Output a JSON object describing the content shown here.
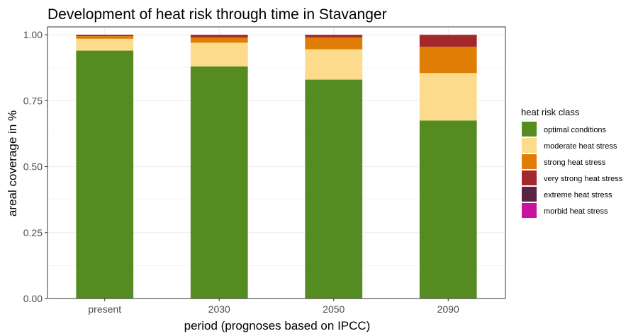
{
  "chart_data": {
    "type": "bar",
    "stacked": true,
    "title": "Development of heat risk through time in Stavanger",
    "xlabel": "period (prognoses based on IPCC)",
    "ylabel": "areal coverage in %",
    "categories": [
      "present",
      "2030",
      "2050",
      "2090"
    ],
    "ylim": [
      0,
      1.03
    ],
    "yticks": [
      "0.00",
      "0.25",
      "0.50",
      "0.75",
      "1.00"
    ],
    "grid": true,
    "legend": {
      "title": "heat risk class",
      "placement": "right"
    },
    "series": [
      {
        "name": "optimal conditions",
        "color": "#558c22",
        "values": [
          0.94,
          0.88,
          0.83,
          0.675
        ]
      },
      {
        "name": "moderate heat stress",
        "color": "#fddb8c",
        "values": [
          0.045,
          0.09,
          0.115,
          0.18
        ]
      },
      {
        "name": "strong heat stress",
        "color": "#e07d05",
        "values": [
          0.01,
          0.02,
          0.045,
          0.1
        ]
      },
      {
        "name": "very strong heat stress",
        "color": "#a4272c",
        "values": [
          0.005,
          0.01,
          0.01,
          0.045
        ]
      },
      {
        "name": "extreme heat stress",
        "color": "#5a2245",
        "values": [
          0,
          0,
          0,
          0
        ]
      },
      {
        "name": "morbid heat stress",
        "color": "#c813a0",
        "values": [
          0,
          0,
          0,
          0
        ]
      }
    ]
  }
}
